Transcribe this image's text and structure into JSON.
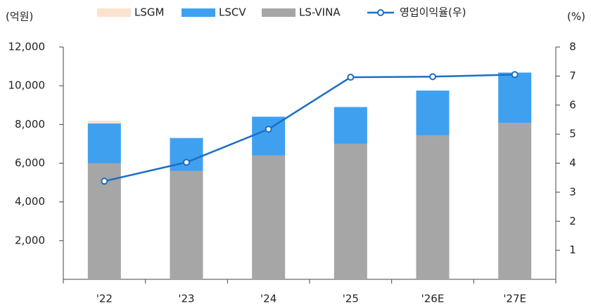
{
  "chart_data": {
    "type": "bar",
    "y_unit_label": "(억원)",
    "y2_unit_label": "(%)",
    "categories": [
      "'22",
      "'23",
      "'24",
      "'25",
      "'26E",
      "'27E"
    ],
    "series": [
      {
        "name": "LSGM",
        "color": "#fbe3d0",
        "values": [
          150,
          0,
          0,
          0,
          0,
          0
        ]
      },
      {
        "name": "LSCV",
        "color": "#3fa0f0",
        "values": [
          2050,
          1700,
          2000,
          1900,
          2300,
          2600
        ]
      },
      {
        "name": "LS-VINA",
        "color": "#a6a6a6",
        "values": [
          6000,
          5600,
          6400,
          7000,
          7450,
          8080
        ]
      },
      {
        "name": "영업이익율(우)",
        "color": "#1b6fc2",
        "type": "line",
        "axis": "y2",
        "values": [
          3.38,
          4.03,
          5.17,
          6.96,
          6.98,
          7.05
        ]
      }
    ],
    "ylim": [
      0,
      12000
    ],
    "yticks": [
      {
        "value": 2000,
        "label": "2,000"
      },
      {
        "value": 4000,
        "label": "4,000"
      },
      {
        "value": 6000,
        "label": "6,000"
      },
      {
        "value": 8000,
        "label": "8,000"
      },
      {
        "value": 10000,
        "label": "10,000"
      },
      {
        "value": 12000,
        "label": "12,000"
      }
    ],
    "y2lim": [
      0,
      8
    ],
    "y2ticks": [
      1,
      2,
      3,
      4,
      5,
      6,
      7,
      8
    ],
    "grid": false
  }
}
